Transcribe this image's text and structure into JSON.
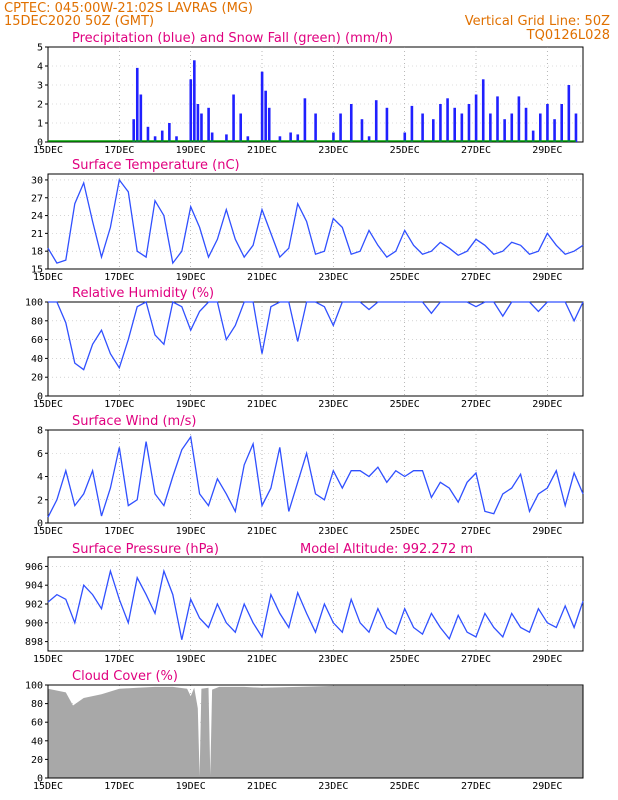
{
  "header": {
    "line1_left": "CPTEC:   045:00W-21:02S   LAVRAS (MG)",
    "line2_left": "15DEC2020 50Z (GMT)",
    "line1_right": "Vertical Grid Line: 50Z",
    "line2_right": "TQ0126L028"
  },
  "x_labels": [
    "15DEC",
    "17DEC",
    "19DEC",
    "21DEC",
    "23DEC",
    "25DEC",
    "27DEC",
    "29DEC"
  ],
  "colors": {
    "line": "#3050ff",
    "precip": "#2020ff",
    "snow": "#00a000",
    "cloud": "#a8a8a8",
    "title": "#e0007f",
    "header": "#e07000"
  },
  "chart_data": [
    {
      "type": "bar",
      "title": "Precipitation (blue) and Snow Fall (green) (mm/h)",
      "ylim": [
        0,
        5
      ],
      "yticks": [
        0,
        1,
        2,
        3,
        4,
        5
      ],
      "x": [
        0,
        0.5,
        1,
        1.5,
        2,
        2.4,
        2.5,
        2.6,
        2.8,
        3,
        3.2,
        3.4,
        3.6,
        4,
        4.1,
        4.2,
        4.3,
        4.5,
        4.6,
        5,
        5.2,
        5.4,
        5.6,
        6,
        6.1,
        6.2,
        6.5,
        6.8,
        7,
        7.2,
        7.5,
        8,
        8.2,
        8.5,
        8.8,
        9,
        9.2,
        9.5,
        10,
        10.2,
        10.5,
        10.8,
        11,
        11.2,
        11.4,
        11.6,
        11.8,
        12,
        12.2,
        12.4,
        12.6,
        12.8,
        13,
        13.2,
        13.4,
        13.6,
        13.8,
        14,
        14.2,
        14.4,
        14.6,
        14.8
      ],
      "series": [
        {
          "name": "Precipitation",
          "values": [
            0,
            0,
            0,
            0,
            0,
            1.2,
            3.9,
            2.5,
            0.8,
            0.3,
            0.6,
            1.0,
            0.3,
            3.3,
            4.3,
            2.0,
            1.5,
            1.8,
            0.5,
            0.4,
            2.5,
            1.5,
            0.3,
            3.7,
            2.7,
            1.8,
            0.3,
            0.5,
            0.4,
            2.3,
            1.5,
            0.5,
            1.5,
            2.0,
            1.2,
            0.3,
            2.2,
            1.8,
            0.5,
            1.9,
            1.5,
            1.2,
            2.0,
            2.3,
            1.8,
            1.5,
            2.0,
            2.5,
            3.3,
            1.5,
            2.4,
            1.2,
            1.5,
            2.4,
            1.8,
            0.6,
            1.5,
            2.0,
            1.2,
            2.0,
            3.0,
            1.5
          ]
        },
        {
          "name": "Snow Fall",
          "values": [
            0,
            0,
            0,
            0,
            0,
            0,
            0,
            0,
            0,
            0,
            0,
            0,
            0,
            0,
            0,
            0,
            0,
            0,
            0,
            0,
            0,
            0,
            0,
            0,
            0,
            0,
            0,
            0,
            0,
            0,
            0,
            0,
            0,
            0,
            0,
            0,
            0,
            0,
            0,
            0,
            0,
            0,
            0,
            0,
            0,
            0,
            0,
            0,
            0,
            0,
            0,
            0,
            0,
            0,
            0,
            0,
            0,
            0,
            0,
            0,
            0,
            0
          ]
        }
      ]
    },
    {
      "type": "line",
      "title": "Surface Temperature (nC)",
      "ylim": [
        15,
        31
      ],
      "yticks": [
        15,
        18,
        21,
        24,
        27,
        30
      ],
      "x": [
        0,
        0.25,
        0.5,
        0.75,
        1,
        1.25,
        1.5,
        1.75,
        2,
        2.25,
        2.5,
        2.75,
        3,
        3.25,
        3.5,
        3.75,
        4,
        4.25,
        4.5,
        4.75,
        5,
        5.25,
        5.5,
        5.75,
        6,
        6.25,
        6.5,
        6.75,
        7,
        7.25,
        7.5,
        7.75,
        8,
        8.25,
        8.5,
        8.75,
        9,
        9.25,
        9.5,
        9.75,
        10,
        10.25,
        10.5,
        10.75,
        11,
        11.25,
        11.5,
        11.75,
        12,
        12.25,
        12.5,
        12.75,
        13,
        13.25,
        13.5,
        13.75,
        14,
        14.25,
        14.5,
        14.75,
        15
      ],
      "series": [
        {
          "name": "",
          "values": [
            18.5,
            16,
            16.5,
            26,
            29.5,
            23,
            17,
            22,
            30,
            28,
            18,
            17,
            26.5,
            24,
            16,
            18,
            25.5,
            22,
            17,
            20,
            25,
            20,
            17,
            19,
            25,
            21,
            17,
            18.5,
            26,
            23,
            17.5,
            18,
            23.5,
            22,
            17.5,
            18,
            21.5,
            19,
            17,
            18,
            21.5,
            19,
            17.5,
            18,
            19.5,
            18.5,
            17.3,
            18,
            20,
            19,
            17.5,
            18,
            19.5,
            19,
            17.5,
            18,
            21,
            19,
            17.5,
            18,
            19
          ]
        }
      ]
    },
    {
      "type": "line",
      "title": "Relative Humidity (%)",
      "ylim": [
        0,
        100
      ],
      "yticks": [
        0,
        20,
        40,
        60,
        80,
        100
      ],
      "x": [
        0,
        0.25,
        0.5,
        0.75,
        1,
        1.25,
        1.5,
        1.75,
        2,
        2.25,
        2.5,
        2.75,
        3,
        3.25,
        3.5,
        3.75,
        4,
        4.25,
        4.5,
        4.75,
        5,
        5.25,
        5.5,
        5.75,
        6,
        6.25,
        6.5,
        6.75,
        7,
        7.25,
        7.5,
        7.75,
        8,
        8.25,
        8.5,
        8.75,
        9,
        9.25,
        9.5,
        9.75,
        10,
        10.25,
        10.5,
        10.75,
        11,
        11.25,
        11.5,
        11.75,
        12,
        12.25,
        12.5,
        12.75,
        13,
        13.25,
        13.5,
        13.75,
        14,
        14.25,
        14.5,
        14.75,
        15
      ],
      "series": [
        {
          "name": "",
          "values": [
            100,
            100,
            78,
            35,
            28,
            55,
            70,
            45,
            30,
            60,
            95,
            100,
            65,
            55,
            100,
            95,
            70,
            90,
            100,
            100,
            60,
            75,
            100,
            100,
            45,
            95,
            100,
            100,
            58,
            100,
            100,
            95,
            75,
            100,
            100,
            100,
            92,
            100,
            100,
            100,
            100,
            100,
            100,
            88,
            100,
            100,
            100,
            100,
            95,
            100,
            100,
            85,
            100,
            100,
            100,
            90,
            100,
            100,
            100,
            80,
            100
          ]
        }
      ]
    },
    {
      "type": "line",
      "title": "Surface Wind (m/s)",
      "ylim": [
        0,
        8
      ],
      "yticks": [
        0,
        2,
        4,
        6,
        8
      ],
      "x": [
        0,
        0.25,
        0.5,
        0.75,
        1,
        1.25,
        1.5,
        1.75,
        2,
        2.25,
        2.5,
        2.75,
        3,
        3.25,
        3.5,
        3.75,
        4,
        4.25,
        4.5,
        4.75,
        5,
        5.25,
        5.5,
        5.75,
        6,
        6.25,
        6.5,
        6.75,
        7,
        7.25,
        7.5,
        7.75,
        8,
        8.25,
        8.5,
        8.75,
        9,
        9.25,
        9.5,
        9.75,
        10,
        10.25,
        10.5,
        10.75,
        11,
        11.25,
        11.5,
        11.75,
        12,
        12.25,
        12.5,
        12.75,
        13,
        13.25,
        13.5,
        13.75,
        14,
        14.25,
        14.5,
        14.75,
        15
      ],
      "series": [
        {
          "name": "",
          "values": [
            0.5,
            2,
            4.5,
            1.5,
            2.5,
            4.5,
            0.6,
            3,
            6.5,
            1.5,
            2,
            7,
            2.5,
            1.5,
            4,
            6.3,
            7.4,
            2.5,
            1.5,
            3.8,
            2.5,
            1,
            5,
            6.8,
            1.5,
            3,
            6.5,
            1,
            3.5,
            6,
            2.5,
            2,
            4.5,
            3,
            4.5,
            4.5,
            4,
            4.8,
            3.5,
            4.5,
            4,
            4.5,
            4.5,
            2.2,
            3.5,
            3,
            1.8,
            3.5,
            4.3,
            1,
            0.8,
            2.5,
            3,
            4.2,
            1,
            2.5,
            3,
            4.5,
            1.5,
            4.3,
            2.5
          ]
        }
      ]
    },
    {
      "type": "line",
      "title": "Surface Pressure (hPa)",
      "annotation": "Model Altitude: 992.272 m",
      "ylim": [
        897,
        907
      ],
      "yticks": [
        898,
        900,
        902,
        904,
        906
      ],
      "x": [
        0,
        0.25,
        0.5,
        0.75,
        1,
        1.25,
        1.5,
        1.75,
        2,
        2.25,
        2.5,
        2.75,
        3,
        3.25,
        3.5,
        3.75,
        4,
        4.25,
        4.5,
        4.75,
        5,
        5.25,
        5.5,
        5.75,
        6,
        6.25,
        6.5,
        6.75,
        7,
        7.25,
        7.5,
        7.75,
        8,
        8.25,
        8.5,
        8.75,
        9,
        9.25,
        9.5,
        9.75,
        10,
        10.25,
        10.5,
        10.75,
        11,
        11.25,
        11.5,
        11.75,
        12,
        12.25,
        12.5,
        12.75,
        13,
        13.25,
        13.5,
        13.75,
        14,
        14.25,
        14.5,
        14.75,
        15
      ],
      "series": [
        {
          "name": "",
          "values": [
            902.2,
            903,
            902.5,
            900,
            904,
            903,
            901.5,
            905.5,
            902.5,
            900,
            904.8,
            903,
            901,
            905.5,
            903,
            898.2,
            902.5,
            900.5,
            899.5,
            902,
            900,
            899,
            902,
            900,
            898.5,
            903,
            901,
            899.5,
            903.2,
            901,
            899,
            902,
            900,
            899,
            902.5,
            900,
            899,
            901.5,
            899.5,
            898.8,
            901.5,
            899.5,
            898.8,
            901,
            899.5,
            898.3,
            900.8,
            899,
            898.5,
            901,
            899.5,
            898.5,
            901,
            899.5,
            899,
            901.5,
            900,
            899.5,
            901.8,
            899.5,
            902.3
          ]
        }
      ]
    },
    {
      "type": "area",
      "title": "Cloud Cover (%)",
      "ylim": [
        0,
        100
      ],
      "yticks": [
        0,
        20,
        40,
        60,
        80,
        100
      ],
      "x": [
        0,
        0.5,
        0.7,
        1,
        1.5,
        2,
        2.5,
        3,
        3.5,
        3.9,
        4.0,
        4.1,
        4.2,
        4.25,
        4.3,
        4.5,
        4.55,
        4.6,
        4.8,
        5,
        5.5,
        6,
        7,
        8,
        9,
        10,
        11,
        12,
        13,
        14,
        14.5,
        15
      ],
      "series": [
        {
          "name": "",
          "values": [
            96,
            92,
            78,
            86,
            90,
            96,
            97,
            98,
            98,
            96,
            88,
            97,
            75,
            2,
            96,
            97,
            3,
            95,
            98,
            98,
            98,
            97,
            98,
            99,
            99,
            99,
            99,
            99,
            99,
            99,
            99,
            99
          ]
        }
      ]
    }
  ]
}
